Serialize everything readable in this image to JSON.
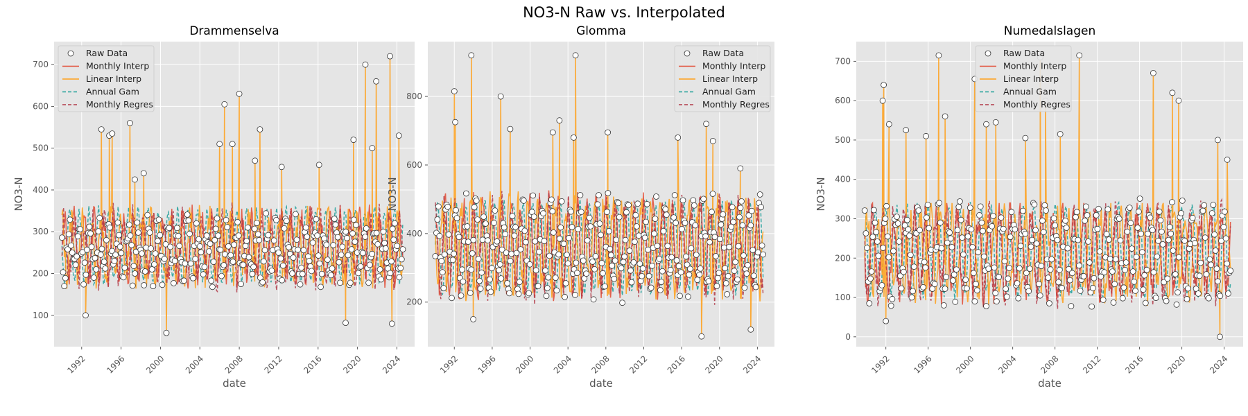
{
  "suptitle": "NO3-N Raw vs. Interpolated",
  "colors": {
    "panel_bg": "#e5e5e5",
    "grid": "#ffffff",
    "raw_marker_face": "#ffffff",
    "raw_marker_edge": "#333333",
    "monthly_interp": "#e24a33",
    "linear_interp": "#ffa01a",
    "annual_gam": "#20a09a",
    "monthly_regres": "#b23a48",
    "axis_text": "#555555",
    "label_text": "#555555"
  },
  "legend": {
    "entries": [
      {
        "key": "raw",
        "label": "Raw Data",
        "style": "marker"
      },
      {
        "key": "monthly_interp",
        "label": "Monthly Interp",
        "style": "solid"
      },
      {
        "key": "linear_interp",
        "label": "Linear Interp",
        "style": "solid"
      },
      {
        "key": "annual_gam",
        "label": "Annual Gam",
        "style": "dashed"
      },
      {
        "key": "monthly_regres",
        "label": "Monthly Regres",
        "style": "dashed"
      }
    ]
  },
  "chart_data": [
    {
      "type": "line",
      "title": "Drammenselva",
      "xlabel": "date",
      "ylabel": "NO3-N",
      "xlim": [
        1989.2,
        2025.8
      ],
      "ylim": [
        25,
        755
      ],
      "xticks": [
        1992,
        1996,
        2000,
        2004,
        2008,
        2012,
        2016,
        2020,
        2024
      ],
      "yticks": [
        100,
        200,
        300,
        400,
        500,
        600,
        700
      ],
      "legend_position": "upper-left",
      "grid": true,
      "spikes": [
        {
          "x": 1992.4,
          "y": 100
        },
        {
          "x": 1994.0,
          "y": 545
        },
        {
          "x": 1994.8,
          "y": 530
        },
        {
          "x": 1995.1,
          "y": 535
        },
        {
          "x": 1996.9,
          "y": 560
        },
        {
          "x": 1997.4,
          "y": 425
        },
        {
          "x": 1998.3,
          "y": 440
        },
        {
          "x": 2000.6,
          "y": 58
        },
        {
          "x": 2006.0,
          "y": 510
        },
        {
          "x": 2006.5,
          "y": 605
        },
        {
          "x": 2007.3,
          "y": 510
        },
        {
          "x": 2008.0,
          "y": 630
        },
        {
          "x": 2009.6,
          "y": 470
        },
        {
          "x": 2010.1,
          "y": 545
        },
        {
          "x": 2012.3,
          "y": 455
        },
        {
          "x": 2016.1,
          "y": 460
        },
        {
          "x": 2018.8,
          "y": 82
        },
        {
          "x": 2019.6,
          "y": 520
        },
        {
          "x": 2020.8,
          "y": 700
        },
        {
          "x": 2021.5,
          "y": 500
        },
        {
          "x": 2021.9,
          "y": 660
        },
        {
          "x": 2023.3,
          "y": 720
        },
        {
          "x": 2023.5,
          "y": 80
        },
        {
          "x": 2024.2,
          "y": 530
        }
      ],
      "series": [
        {
          "name": "Raw Data",
          "key": "raw",
          "x_start": 1990.0,
          "x_end": 2024.6,
          "n": 300,
          "base": 255,
          "amp": 55,
          "noise": 38,
          "lo": 100,
          "hi": 400,
          "seed": 11
        },
        {
          "name": "Monthly Interp",
          "key": "monthly_interp",
          "x_start": 1990.0,
          "x_end": 2024.6,
          "n": 420,
          "base": 265,
          "amp": 70,
          "noise": 35,
          "lo": 140,
          "hi": 400,
          "seed": 12
        },
        {
          "name": "Linear Interp",
          "key": "linear_interp",
          "x_start": 1990.0,
          "x_end": 2024.6,
          "n": 420,
          "base": 265,
          "amp": 70,
          "noise": 35,
          "lo": 140,
          "hi": 400,
          "seed": 13
        },
        {
          "name": "Annual Gam",
          "key": "annual_gam",
          "x_start": 1990.0,
          "x_end": 2024.6,
          "n": 420,
          "base": 268,
          "amp": 85,
          "noise": 12,
          "lo": 150,
          "hi": 395,
          "seed": 14
        },
        {
          "name": "Monthly Regres",
          "key": "monthly_regres",
          "x_start": 1990.0,
          "x_end": 2024.6,
          "n": 420,
          "base": 262,
          "amp": 70,
          "noise": 40,
          "lo": 135,
          "hi": 445,
          "seed": 15
        }
      ]
    },
    {
      "type": "line",
      "title": "Glomma",
      "xlabel": "date",
      "ylabel": "NO3-N",
      "xlim": [
        1989.2,
        2025.8
      ],
      "ylim": [
        70,
        960
      ],
      "xticks": [
        1992,
        1996,
        2000,
        2004,
        2008,
        2012,
        2016,
        2020,
        2024
      ],
      "yticks": [
        200,
        400,
        600,
        800
      ],
      "legend_position": "upper-right",
      "grid": true,
      "spikes": [
        {
          "x": 1992.0,
          "y": 815
        },
        {
          "x": 1992.1,
          "y": 725
        },
        {
          "x": 1993.8,
          "y": 920
        },
        {
          "x": 1994.0,
          "y": 150
        },
        {
          "x": 1996.9,
          "y": 800
        },
        {
          "x": 1997.9,
          "y": 705
        },
        {
          "x": 2002.4,
          "y": 695
        },
        {
          "x": 2003.1,
          "y": 730
        },
        {
          "x": 2004.8,
          "y": 920
        },
        {
          "x": 2004.6,
          "y": 680
        },
        {
          "x": 2008.2,
          "y": 695
        },
        {
          "x": 2015.6,
          "y": 680
        },
        {
          "x": 2018.1,
          "y": 100
        },
        {
          "x": 2018.6,
          "y": 720
        },
        {
          "x": 2019.3,
          "y": 670
        },
        {
          "x": 2022.2,
          "y": 590
        },
        {
          "x": 2023.3,
          "y": 120
        }
      ],
      "series": [
        {
          "name": "Raw Data",
          "key": "raw",
          "x_start": 1990.0,
          "x_end": 2024.6,
          "n": 320,
          "base": 360,
          "amp": 110,
          "noise": 55,
          "lo": 160,
          "hi": 640,
          "seed": 21
        },
        {
          "name": "Monthly Interp",
          "key": "monthly_interp",
          "x_start": 1990.0,
          "x_end": 2024.6,
          "n": 420,
          "base": 365,
          "amp": 120,
          "noise": 45,
          "lo": 200,
          "hi": 560,
          "seed": 22
        },
        {
          "name": "Linear Interp",
          "key": "linear_interp",
          "x_start": 1990.0,
          "x_end": 2024.6,
          "n": 420,
          "base": 365,
          "amp": 120,
          "noise": 45,
          "lo": 200,
          "hi": 560,
          "seed": 23
        },
        {
          "name": "Annual Gam",
          "key": "annual_gam",
          "x_start": 1990.0,
          "x_end": 2024.6,
          "n": 420,
          "base": 360,
          "amp": 130,
          "noise": 15,
          "lo": 210,
          "hi": 520,
          "seed": 24
        },
        {
          "name": "Monthly Regres",
          "key": "monthly_regres",
          "x_start": 1990.0,
          "x_end": 2024.6,
          "n": 420,
          "base": 360,
          "amp": 120,
          "noise": 50,
          "lo": 190,
          "hi": 580,
          "seed": 25
        }
      ]
    },
    {
      "type": "line",
      "title": "Numedalslagen",
      "xlabel": "date",
      "ylabel": "NO3-N",
      "xlim": [
        1989.2,
        2025.8
      ],
      "ylim": [
        -25,
        750
      ],
      "xticks": [
        1992,
        1996,
        2000,
        2004,
        2008,
        2012,
        2016,
        2020,
        2024
      ],
      "yticks": [
        0,
        100,
        200,
        300,
        400,
        500,
        600,
        700
      ],
      "legend_position": "upper-center",
      "grid": true,
      "spikes": [
        {
          "x": 1991.8,
          "y": 640
        },
        {
          "x": 1991.7,
          "y": 600
        },
        {
          "x": 1992.3,
          "y": 540
        },
        {
          "x": 1992.0,
          "y": 40
        },
        {
          "x": 1993.9,
          "y": 525
        },
        {
          "x": 1995.8,
          "y": 510
        },
        {
          "x": 1997.0,
          "y": 715
        },
        {
          "x": 1997.6,
          "y": 560
        },
        {
          "x": 2000.4,
          "y": 655
        },
        {
          "x": 2001.5,
          "y": 540
        },
        {
          "x": 2002.4,
          "y": 545
        },
        {
          "x": 2005.2,
          "y": 505
        },
        {
          "x": 2006.6,
          "y": 710
        },
        {
          "x": 2007.1,
          "y": 600
        },
        {
          "x": 2008.5,
          "y": 515
        },
        {
          "x": 2010.3,
          "y": 715
        },
        {
          "x": 2017.3,
          "y": 670
        },
        {
          "x": 2019.1,
          "y": 620
        },
        {
          "x": 2019.7,
          "y": 600
        },
        {
          "x": 2023.4,
          "y": 500
        },
        {
          "x": 2023.6,
          "y": 0
        },
        {
          "x": 2024.3,
          "y": 450
        }
      ],
      "series": [
        {
          "name": "Raw Data",
          "key": "raw",
          "x_start": 1990.0,
          "x_end": 2024.6,
          "n": 320,
          "base": 215,
          "amp": 95,
          "noise": 45,
          "lo": 45,
          "hi": 440,
          "seed": 31
        },
        {
          "name": "Monthly Interp",
          "key": "monthly_interp",
          "x_start": 1990.0,
          "x_end": 2024.6,
          "n": 420,
          "base": 215,
          "amp": 100,
          "noise": 40,
          "lo": 70,
          "hi": 340,
          "seed": 32
        },
        {
          "name": "Linear Interp",
          "key": "linear_interp",
          "x_start": 1990.0,
          "x_end": 2024.6,
          "n": 420,
          "base": 215,
          "amp": 100,
          "noise": 40,
          "lo": 70,
          "hi": 340,
          "seed": 33
        },
        {
          "name": "Annual Gam",
          "key": "annual_gam",
          "x_start": 1990.0,
          "x_end": 2024.6,
          "n": 420,
          "base": 220,
          "amp": 110,
          "noise": 15,
          "lo": 90,
          "hi": 410,
          "seed": 34
        },
        {
          "name": "Monthly Regres",
          "key": "monthly_regres",
          "x_start": 1990.0,
          "x_end": 2024.6,
          "n": 420,
          "base": 215,
          "amp": 100,
          "noise": 45,
          "lo": 60,
          "hi": 360,
          "seed": 35
        }
      ]
    }
  ]
}
